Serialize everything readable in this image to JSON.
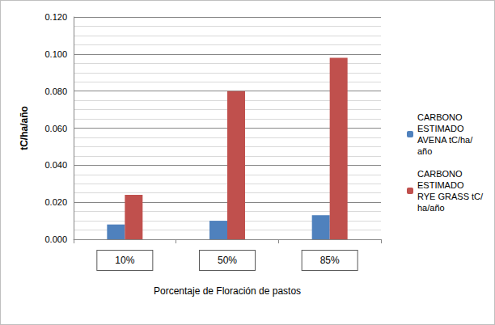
{
  "chart_data": {
    "type": "bar",
    "x_label": "Porcentaje de Floración de pastos",
    "y_label": "tC/ha/año",
    "categories": [
      "10%",
      "50%",
      "85%"
    ],
    "series": [
      {
        "name": "CARBONO ESTIMADO AVENA tC/ha/año",
        "color": "#4f81bd",
        "values": [
          0.008,
          0.01,
          0.013
        ]
      },
      {
        "name": "CARBONO ESTIMADO RYE GRASS tC/ha/año",
        "color": "#c0504d",
        "values": [
          0.024,
          0.08,
          0.098
        ]
      }
    ],
    "ylim": [
      0,
      0.12
    ],
    "yticks": [
      {
        "value": 0,
        "label": "0.000"
      },
      {
        "value": 0.02,
        "label": "0.020"
      },
      {
        "value": 0.04,
        "label": "0.040"
      },
      {
        "value": 0.06,
        "label": "0.060"
      },
      {
        "value": 0.08,
        "label": "0.080"
      },
      {
        "value": 0.1,
        "label": "0.100"
      },
      {
        "value": 0.12,
        "label": "0.120"
      }
    ],
    "grid": true,
    "legend": "right"
  }
}
